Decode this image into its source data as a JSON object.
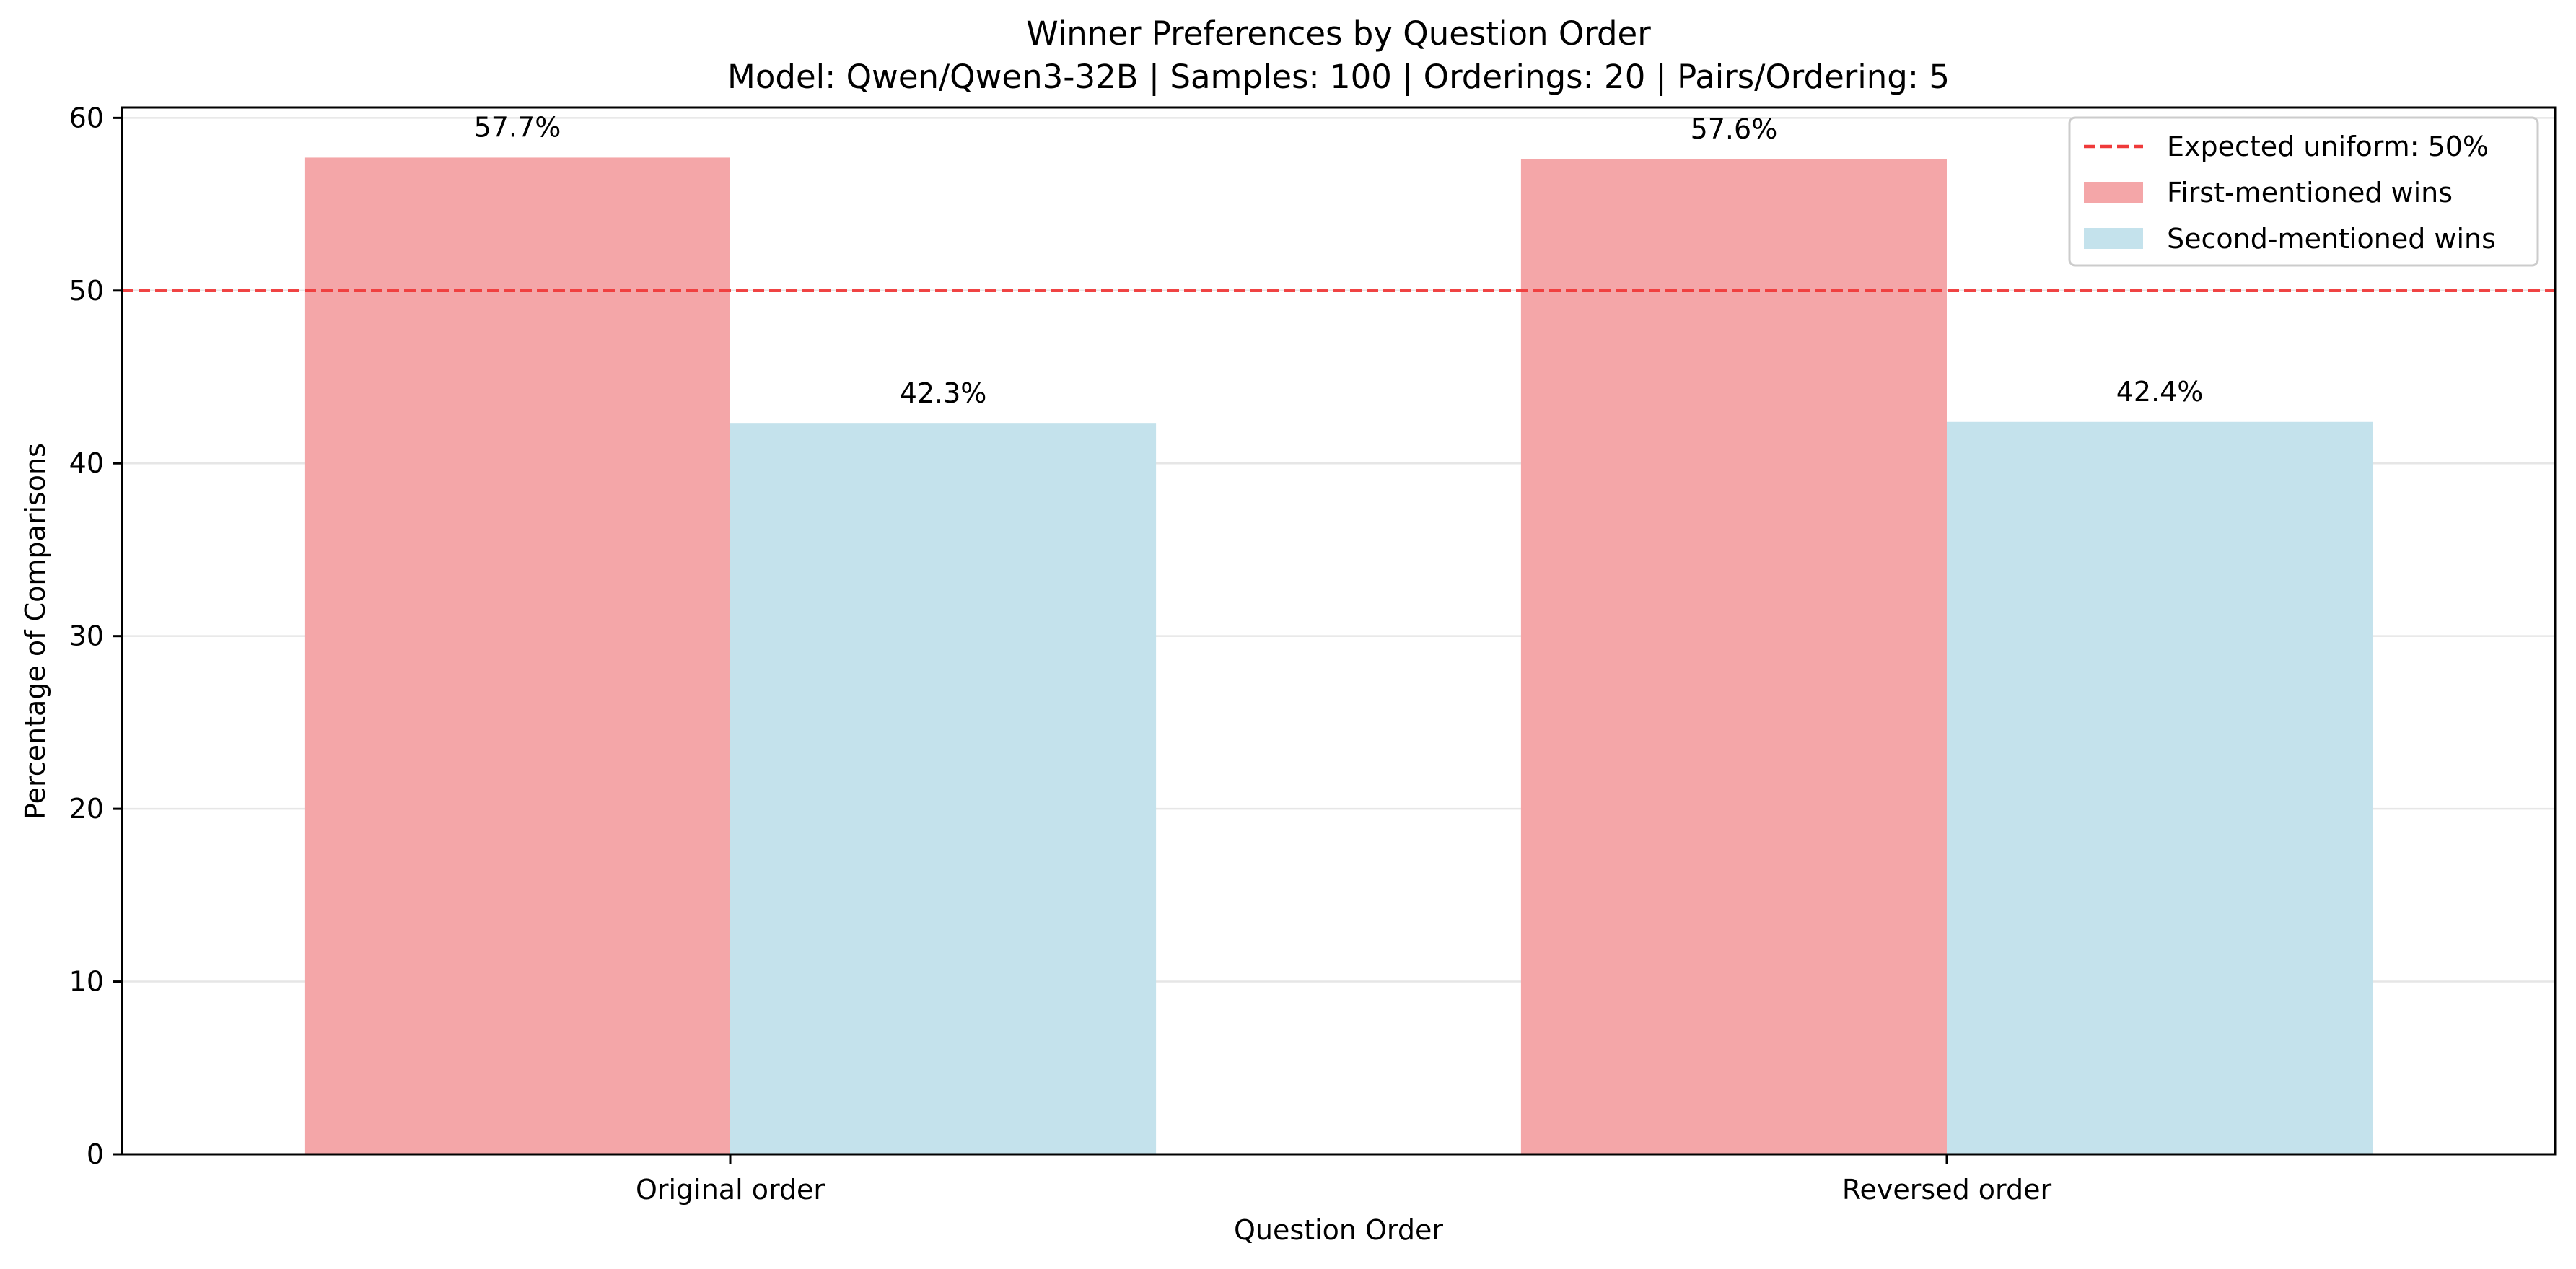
{
  "colors": {
    "first": "#f4a6a8",
    "second": "#c4e2ec",
    "reference": "#ef3a3a",
    "grid": "#e6e6e6",
    "axis": "#000000"
  },
  "chart_data": {
    "type": "bar",
    "title": "Winner Preferences by Question Order",
    "subtitle": "Model: Qwen/Qwen3-32B | Samples: 100 | Orderings: 20 | Pairs/Ordering: 5",
    "xlabel": "Question Order",
    "ylabel": "Percentage of Comparisons",
    "categories": [
      "Original order",
      "Reversed order"
    ],
    "series": [
      {
        "name": "First-mentioned wins",
        "values": [
          57.7,
          57.6
        ],
        "labels": [
          "57.7%",
          "57.6%"
        ],
        "color": "#f4a6a8"
      },
      {
        "name": "Second-mentioned wins",
        "values": [
          42.3,
          42.4
        ],
        "labels": [
          "42.3%",
          "42.4%"
        ],
        "color": "#c4e2ec"
      }
    ],
    "reference_line": {
      "value": 50,
      "label": "Expected uniform: 50%",
      "style": "dashed",
      "color": "#ef3a3a"
    },
    "ylim": [
      0,
      60.6
    ],
    "yticks": [
      0,
      10,
      20,
      30,
      40,
      50,
      60
    ],
    "grid": "horizontal",
    "legend": "top-right"
  }
}
